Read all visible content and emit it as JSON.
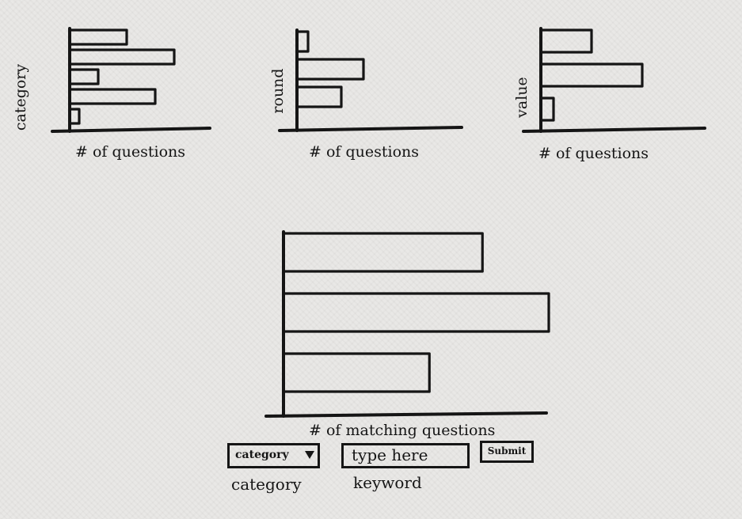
{
  "chart_data": [
    {
      "type": "bar",
      "orientation": "horizontal",
      "xlabel": "# of questions",
      "ylabel": "category",
      "values": [
        3,
        5.5,
        1.5,
        4.5,
        0.5
      ]
    },
    {
      "type": "bar",
      "orientation": "horizontal",
      "xlabel": "# of questions",
      "ylabel": "round",
      "values": [
        0.5,
        3,
        2
      ]
    },
    {
      "type": "bar",
      "orientation": "horizontal",
      "xlabel": "# of questions",
      "ylabel": "value",
      "values": [
        2,
        4,
        0.5
      ]
    },
    {
      "type": "bar",
      "orientation": "horizontal",
      "xlabel": "# of matching questions",
      "ylabel": "",
      "values": [
        7.5,
        10,
        5.5
      ]
    }
  ],
  "controls": {
    "category_select": {
      "value": "category",
      "label": "category"
    },
    "keyword_input": {
      "placeholder": "type here",
      "label": "keyword"
    },
    "submit_label": "Submit"
  }
}
